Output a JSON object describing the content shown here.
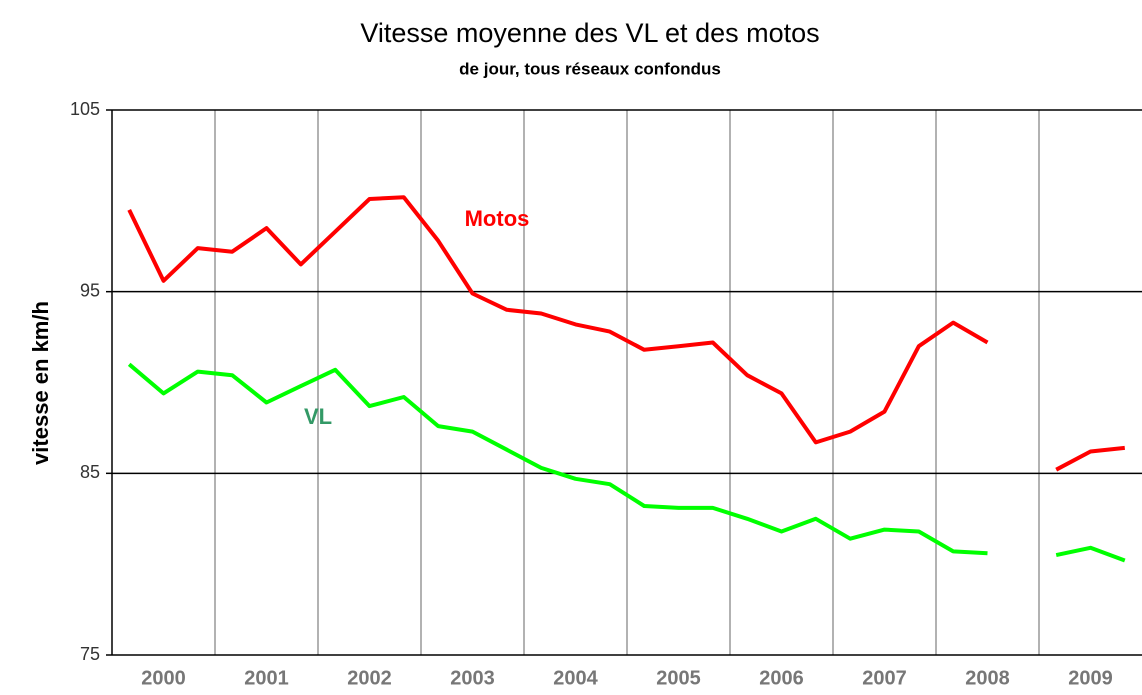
{
  "chart_data": {
    "type": "line",
    "title": "Vitesse moyenne des VL et des motos",
    "subtitle": "de jour, tous réseaux confondus",
    "y_label": "vitesse en km/h",
    "categories": [
      null,
      "2000",
      null,
      null,
      "2001",
      null,
      null,
      "2002",
      null,
      null,
      "2003",
      null,
      null,
      "2004",
      null,
      null,
      "2005",
      null,
      null,
      "2006",
      null,
      null,
      "2007",
      null,
      null,
      "2008",
      null,
      null,
      "2009",
      null
    ],
    "series": [
      {
        "name": "Motos",
        "color": "#ff0000",
        "values": [
          99.5,
          95.6,
          97.4,
          97.2,
          98.5,
          96.5,
          98.3,
          100.1,
          100.2,
          97.8,
          94.9,
          94.0,
          93.8,
          93.2,
          92.8,
          91.8,
          92.0,
          92.2,
          90.4,
          89.4,
          86.7,
          87.3,
          88.4,
          92.0,
          93.3,
          92.2,
          null,
          85.2,
          86.2,
          86.4
        ]
      },
      {
        "name": "VL",
        "color": "#00ff00",
        "values": [
          91.0,
          89.4,
          90.6,
          90.4,
          88.9,
          89.8,
          90.7,
          88.7,
          89.2,
          87.6,
          87.3,
          86.3,
          85.3,
          84.7,
          84.4,
          83.2,
          83.1,
          83.1,
          82.5,
          81.8,
          82.5,
          81.4,
          81.9,
          81.8,
          80.7,
          80.6,
          null,
          80.5,
          80.9,
          80.2
        ]
      }
    ],
    "annotations": [
      {
        "text": "Motos",
        "color": "#ff0000"
      },
      {
        "text": "VL",
        "color": "#339966"
      }
    ],
    "ylim": [
      75,
      105
    ],
    "yticks": [
      75,
      85,
      95,
      105
    ],
    "grid": true
  }
}
